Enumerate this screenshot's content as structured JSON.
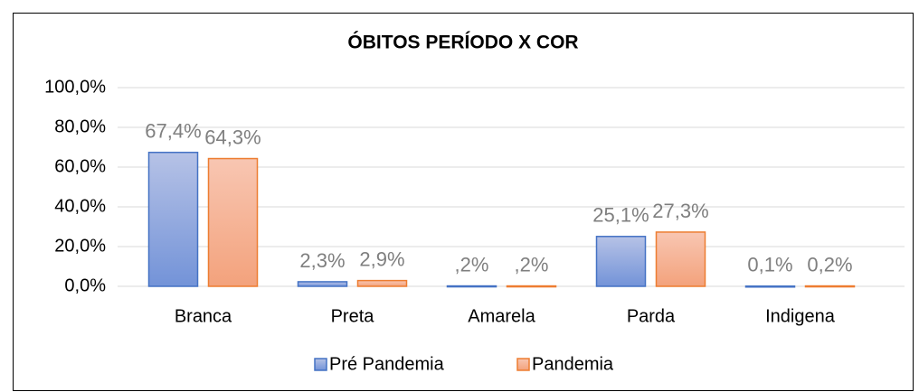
{
  "chart_data": {
    "type": "bar",
    "title": "ÓBITOS  PERÍODO  X COR",
    "categories": [
      "Branca",
      "Preta",
      "Amarela",
      "Parda",
      "Indigena"
    ],
    "series": [
      {
        "name": "Pré Pandemia",
        "color": "#4472c4",
        "values": [
          67.4,
          2.3,
          0.2,
          25.1,
          0.1
        ],
        "value_labels": [
          "67,4%",
          "2,3%",
          ",2%",
          "25,1%",
          "0,1%"
        ]
      },
      {
        "name": "Pandemia",
        "color": "#ed7d31",
        "values": [
          64.3,
          2.9,
          0.2,
          27.3,
          0.2
        ],
        "value_labels": [
          "64,3%",
          "2,9%",
          ",2%",
          "27,3%",
          "0,2%"
        ]
      }
    ],
    "ylim": [
      0,
      100
    ],
    "yticks": [
      {
        "value": 0,
        "label": "0,0%"
      },
      {
        "value": 20,
        "label": "20,0%"
      },
      {
        "value": 40,
        "label": "40,0%"
      },
      {
        "value": 60,
        "label": "60,0%"
      },
      {
        "value": 80,
        "label": "80,0%"
      },
      {
        "value": 100,
        "label": "100,0%"
      }
    ],
    "grid": true,
    "legend": "bottom"
  }
}
